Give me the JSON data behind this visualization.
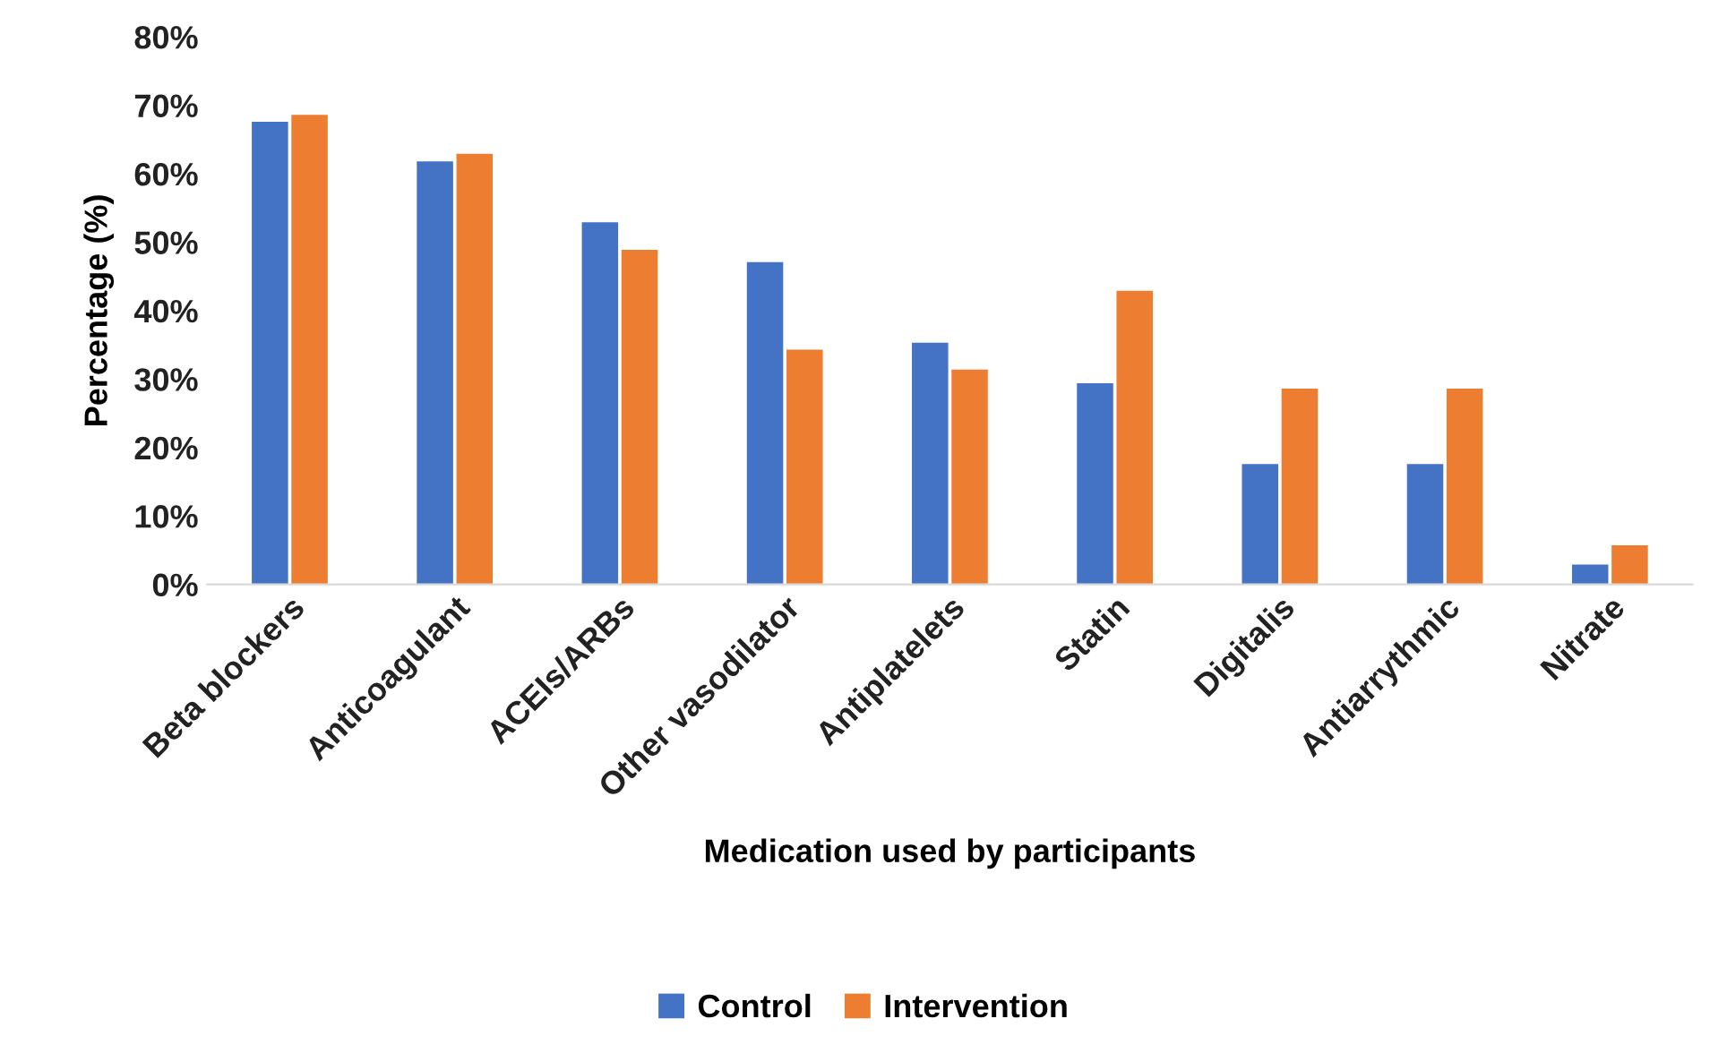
{
  "chart_data": {
    "type": "bar",
    "xlabel": "Medication used by participants",
    "ylabel": "Percentage (%)",
    "categories": [
      "Beta blockers",
      "Anticoagulant",
      "ACEIs/ARBs",
      "Other vasodilator",
      "Antiplatelets",
      "Statin",
      "Digitalis",
      "Antiarrythmic",
      "Nitrate"
    ],
    "series": [
      {
        "name": "Control",
        "color": "#4472c4",
        "values": [
          67.6,
          61.8,
          52.9,
          47.1,
          35.3,
          29.4,
          17.6,
          17.6,
          2.9
        ]
      },
      {
        "name": "Intervention",
        "color": "#ed7d31",
        "values": [
          68.6,
          62.9,
          48.9,
          34.3,
          31.4,
          42.9,
          28.6,
          28.6,
          5.7
        ]
      }
    ],
    "ylim": [
      0,
      80
    ],
    "yticks": [
      {
        "value": 0,
        "label": "0%"
      },
      {
        "value": 10,
        "label": "10%"
      },
      {
        "value": 20,
        "label": "20%"
      },
      {
        "value": 30,
        "label": "30%"
      },
      {
        "value": 40,
        "label": "40%"
      },
      {
        "value": 50,
        "label": "50%"
      },
      {
        "value": 60,
        "label": "60%"
      },
      {
        "value": 70,
        "label": "70%"
      },
      {
        "value": 80,
        "label": "80%"
      }
    ],
    "grid": false,
    "legend": "bottom"
  }
}
